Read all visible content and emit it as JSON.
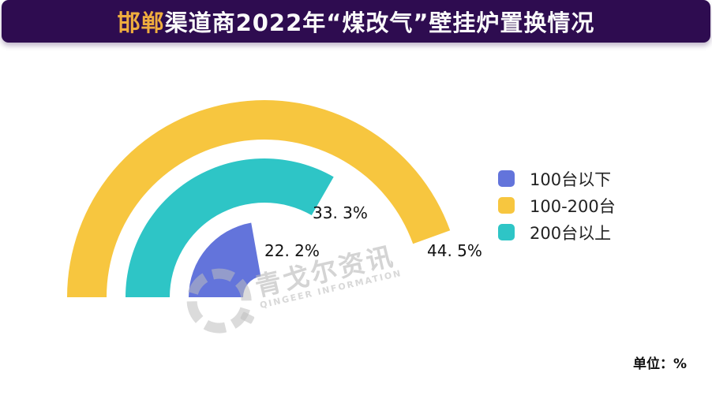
{
  "header": {
    "title_highlight": "邯郸",
    "title_rest": "渠道商2022年“煤改气”壁挂炉置换情况"
  },
  "legend": {
    "position": "right",
    "items": [
      {
        "label": "100台以下",
        "color": "#6374DB"
      },
      {
        "label": "100-200台",
        "color": "#F7C63F"
      },
      {
        "label": "200台以上",
        "color": "#2EC5C6"
      }
    ]
  },
  "footer": {
    "unit_label": "单位：%"
  },
  "watermark": {
    "cn": "青戈尔资讯",
    "en": "QINGEER INFORMATION"
  },
  "chart_data": {
    "type": "bar",
    "subtype": "polar-radial-semicircle",
    "title": "邯郸渠道商2022年“煤改气”壁挂炉置换情况",
    "unit": "%",
    "start_angle_deg": 180,
    "direction": "clockwise",
    "degrees_per_percent": 3.6,
    "legend_position": "right",
    "grid": false,
    "categories": [
      "100台以下",
      "100-200台",
      "200台以上"
    ],
    "values": [
      22.2,
      44.5,
      33.3
    ],
    "series": [
      {
        "name": "100台以下",
        "value": 22.2,
        "display_label": "22. 2%",
        "color": "#6374DB",
        "ring": "inner"
      },
      {
        "name": "200台以上",
        "value": 33.3,
        "display_label": "33. 3%",
        "color": "#2EC5C6",
        "ring": "middle"
      },
      {
        "name": "100-200台",
        "value": 44.5,
        "display_label": "44. 5%",
        "color": "#F7C63F",
        "ring": "outer"
      }
    ]
  }
}
